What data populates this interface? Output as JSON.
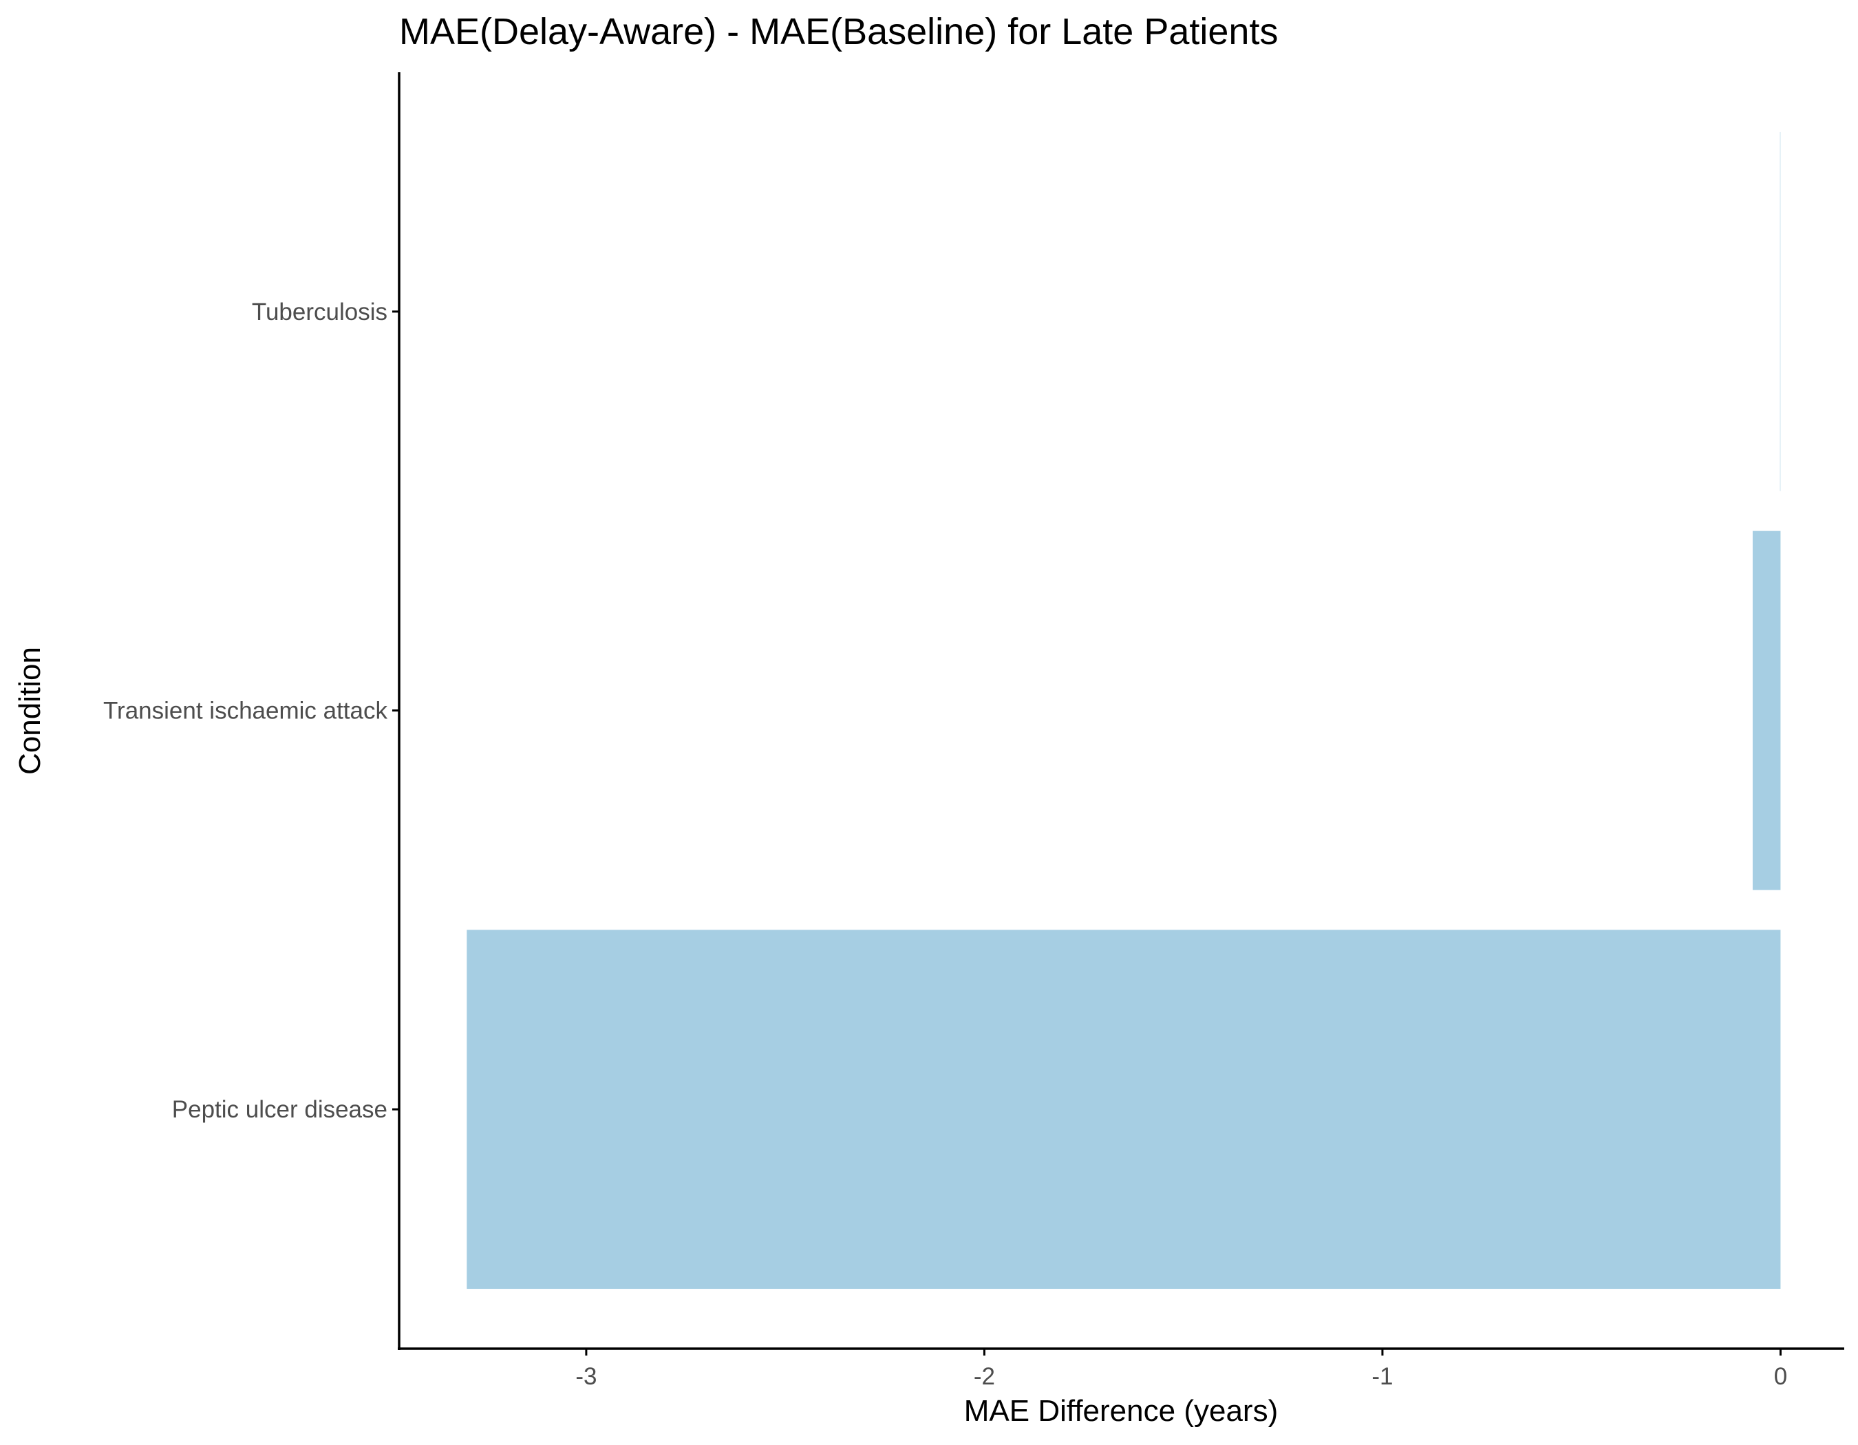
{
  "chart_data": {
    "type": "bar",
    "orientation": "horizontal",
    "title": "MAE(Delay-Aware) - MAE(Baseline) for Late Patients",
    "xlabel": "MAE Difference (years)",
    "ylabel": "Condition",
    "categories": [
      "Peptic ulcer disease",
      "Transient ischaemic attack",
      "Tuberculosis"
    ],
    "values": [
      -3.3,
      -0.07,
      -0.002
    ],
    "xlim": [
      -3.47,
      0.16
    ],
    "xticks": [
      -3,
      -2,
      -1,
      0
    ],
    "xtick_labels": [
      "-3",
      "-2",
      "-1",
      "0"
    ],
    "grid": false,
    "bar_color": "#a6cee3"
  }
}
